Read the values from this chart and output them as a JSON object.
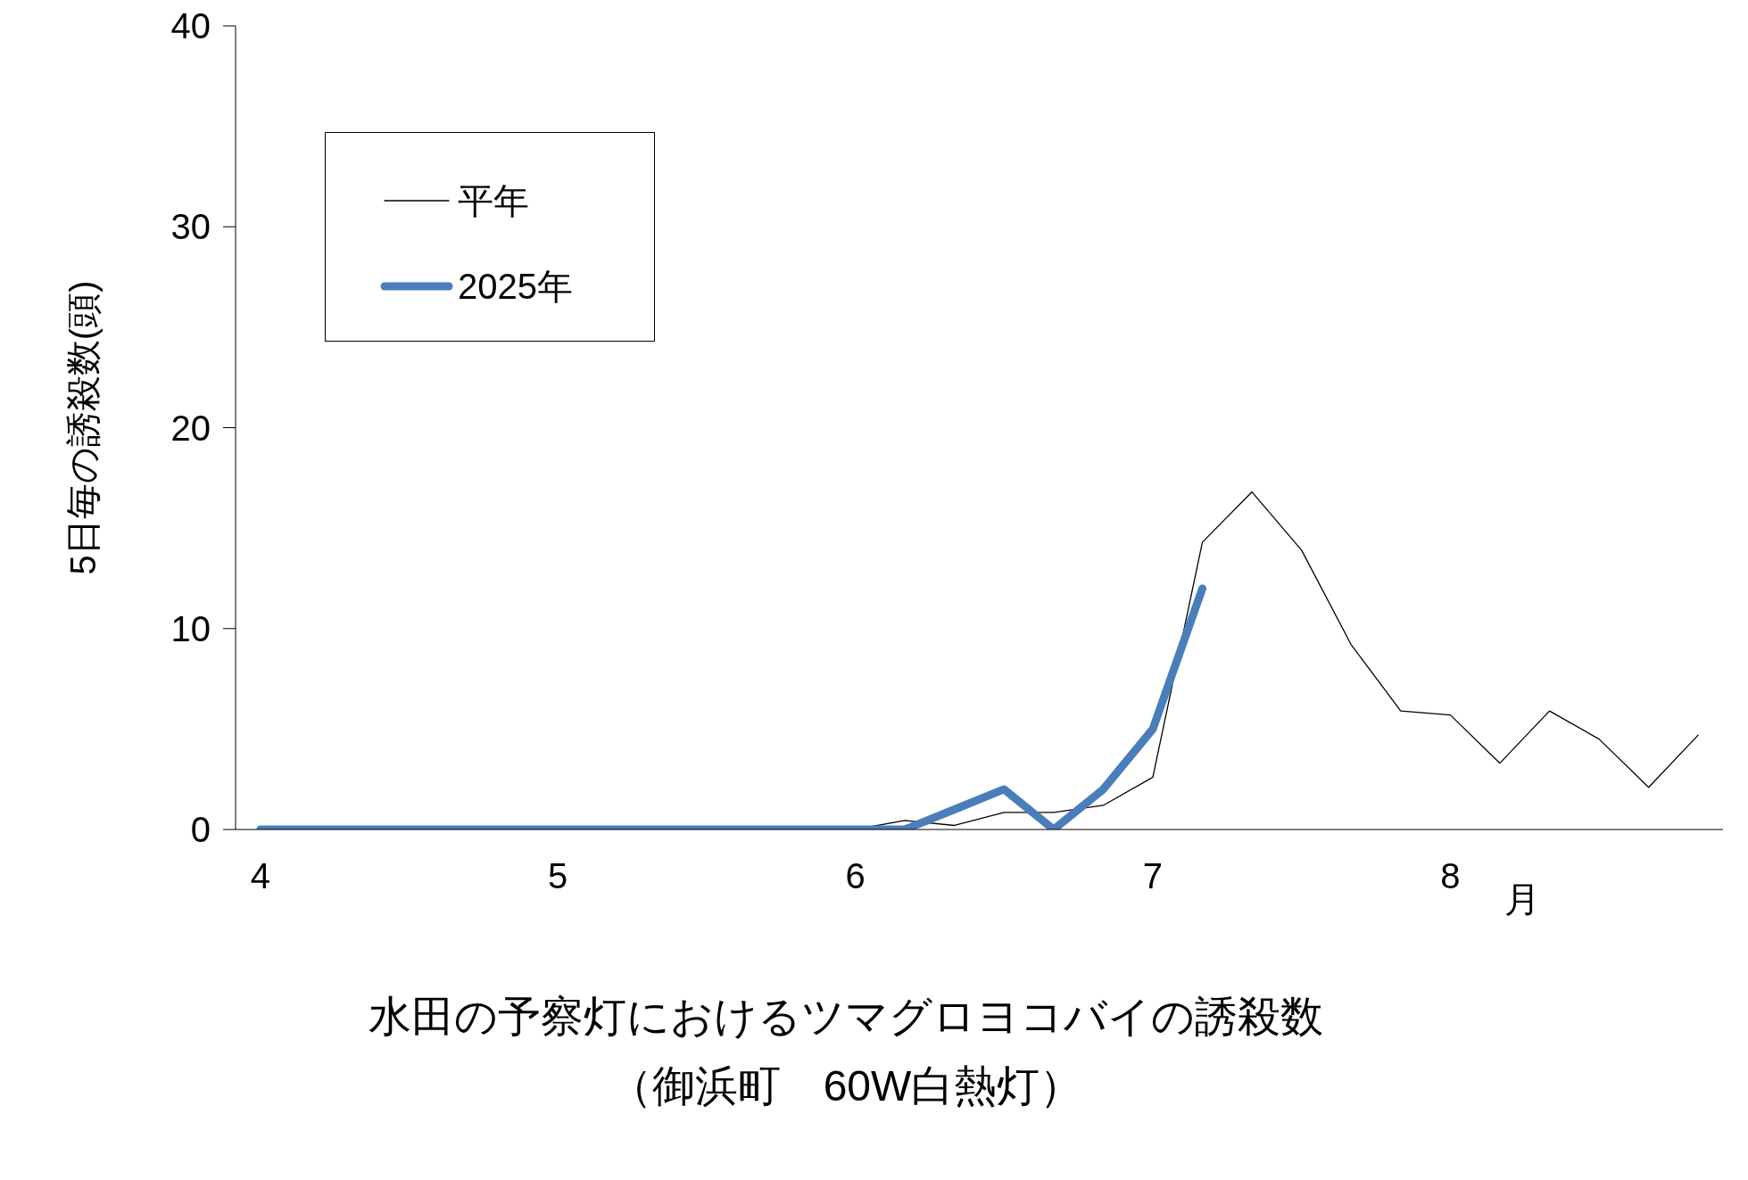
{
  "chart_data": {
    "type": "line",
    "title": "水田の予察灯におけるツマグロヨコバイの誘殺数",
    "subtitle": "（御浜町　60W白熱灯）",
    "xlabel": "月",
    "ylabel": "5日毎の誘殺数(頭)",
    "categories": [
      "4",
      null,
      null,
      null,
      null,
      null,
      "5",
      null,
      null,
      null,
      null,
      null,
      "6",
      null,
      null,
      null,
      null,
      null,
      "7",
      null,
      null,
      null,
      null,
      null,
      "8",
      null,
      null,
      null,
      null,
      null
    ],
    "series": [
      {
        "name": "平年",
        "color": "#000000",
        "values": [
          0,
          0,
          0,
          0,
          0,
          0,
          0,
          0,
          0,
          0,
          0,
          0,
          0,
          0.45,
          0.2,
          0.85,
          0.85,
          1.2,
          2.6,
          14.3,
          16.8,
          13.9,
          9.2,
          5.9,
          5.7,
          3.3,
          5.9,
          4.5,
          2.1,
          4.7
        ]
      },
      {
        "name": "2025年",
        "color": "#4a7ebb",
        "values": [
          0,
          0,
          0,
          0,
          0,
          0,
          0,
          0,
          0,
          0,
          0,
          0,
          0,
          0,
          1,
          2,
          0,
          2,
          5,
          12,
          null,
          null,
          null,
          null,
          null,
          null,
          null,
          null,
          null,
          null
        ]
      }
    ],
    "ylim": [
      0,
      40
    ],
    "yticks": [
      0,
      10,
      20,
      30,
      40
    ],
    "grid": false,
    "legend": "top left",
    "marker": "none",
    "line_style": "solid"
  }
}
